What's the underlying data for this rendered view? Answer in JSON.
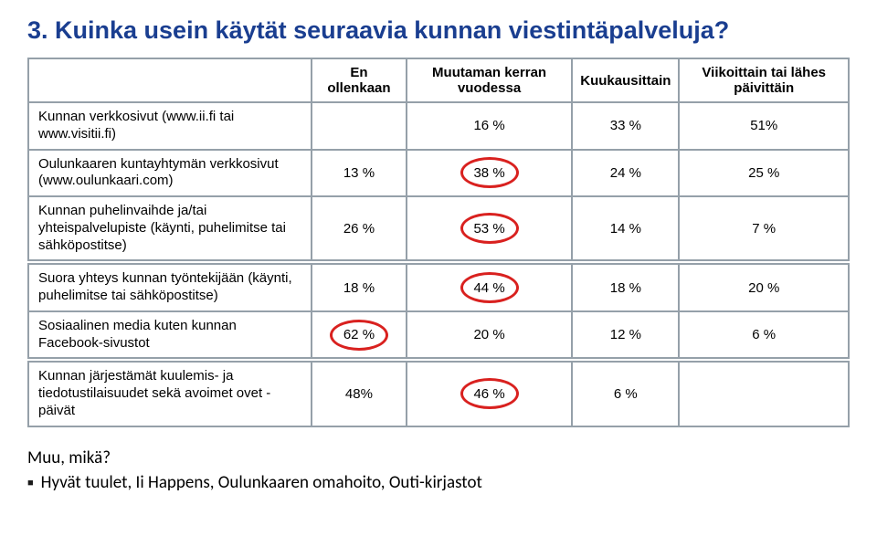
{
  "page": {
    "title": "3. Kuinka usein käytät seuraavia kunnan viestintäpalveluja?",
    "title_color": "#1a3e90",
    "bg_color": "#ffffff",
    "border_color": "#95a0a9",
    "text_color": "#000000",
    "circle_color": "#d9211f"
  },
  "table": {
    "header": {
      "col1": "En ollenkaan",
      "col2": "Muutaman kerran vuodessa",
      "col3": "Kuukausittain",
      "col4": "Viikoittain tai lähes päivittäin"
    },
    "rows": [
      {
        "label": "Kunnan verkkosivut (www.ii.fi tai www.visitii.fi)",
        "c1": "",
        "c2": "16 %",
        "c3": "33 %",
        "c4": "51%",
        "circ1": false,
        "circ2": false,
        "circ3": false,
        "circ4": false
      },
      {
        "label": "Oulunkaaren kuntayhtymän verkkosivut (www.oulunkaari.com)",
        "c1": "13 %",
        "c2": "38 %",
        "c3": "24 %",
        "c4": "25 %",
        "circ1": false,
        "circ2": true,
        "circ3": false,
        "circ4": false
      },
      {
        "label": "Kunnan puhelinvaihde ja/tai yhteispalvelupiste (käynti, puhelimitse tai sähköpostitse)",
        "c1": "26 %",
        "c2": "53 %",
        "c3": "14 %",
        "c4": "7 %",
        "circ1": false,
        "circ2": true,
        "circ3": false,
        "circ4": false
      }
    ],
    "rowsB": [
      {
        "label": "Suora yhteys kunnan työntekijään (käynti, puhelimitse tai sähköpostitse)",
        "c1": "18 %",
        "c2": "44 %",
        "c3": "18 %",
        "c4": "20 %",
        "circ1": false,
        "circ2": true,
        "circ3": false,
        "circ4": false
      },
      {
        "label": "Sosiaalinen media kuten kunnan Facebook-sivustot",
        "c1": "62 %",
        "c2": "20 %",
        "c3": "12 %",
        "c4": "6 %",
        "circ1": true,
        "circ2": false,
        "circ3": false,
        "circ4": false
      }
    ],
    "rowsC": [
      {
        "label": "Kunnan järjestämät kuulemis- ja tiedotustilaisuudet sekä avoimet ovet -päivät",
        "c1": "48%",
        "c2": "46 %",
        "c3": "6 %",
        "c4": "",
        "circ1": false,
        "circ2": true,
        "circ3": false,
        "circ4": false
      }
    ]
  },
  "footer": {
    "label": "Muu, mikä?",
    "bullet": "Hyvät tuulet, Ii Happens, Oulunkaaren omahoito, Outi-kirjastot"
  }
}
